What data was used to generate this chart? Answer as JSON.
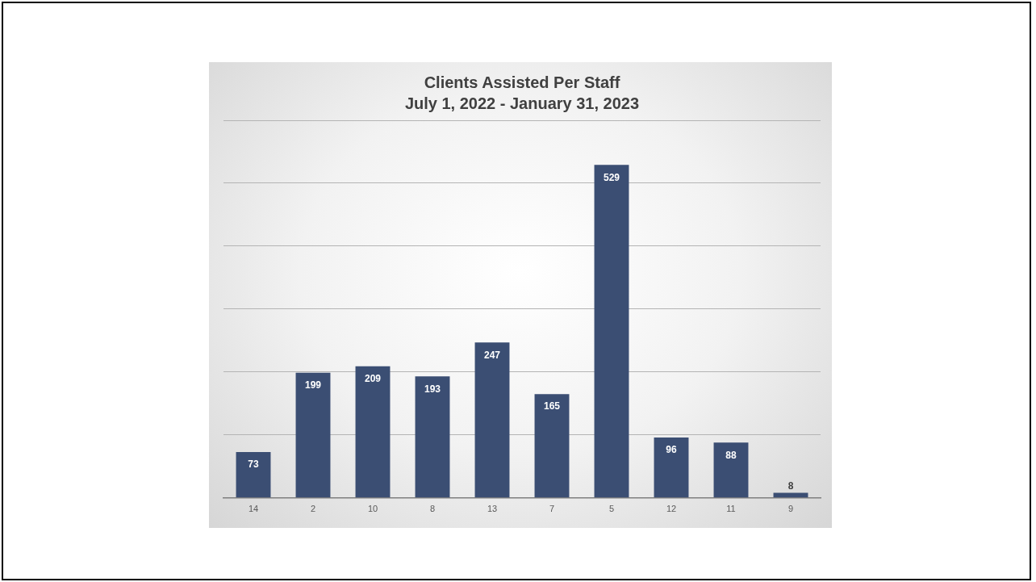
{
  "chart_data": {
    "type": "bar",
    "title": "Clients Assisted Per Staff",
    "subtitle": "July 1, 2022 - January 31, 2023",
    "categories": [
      "14",
      "2",
      "10",
      "8",
      "13",
      "7",
      "5",
      "12",
      "11",
      "9"
    ],
    "values": [
      73,
      199,
      209,
      193,
      247,
      165,
      529,
      96,
      88,
      8
    ],
    "color": "#3b4e73",
    "ylim": [
      0,
      600
    ],
    "yticks": [
      {
        "value": 0,
        "label": null
      },
      {
        "value": 100,
        "label": null
      },
      {
        "value": 200,
        "label": null
      },
      {
        "value": 300,
        "label": null
      },
      {
        "value": 400,
        "label": null
      },
      {
        "value": 500,
        "label": null
      },
      {
        "value": 600,
        "label": null
      }
    ],
    "grid": "y",
    "tick_labels": "x",
    "data_labels": true,
    "legend": false
  }
}
